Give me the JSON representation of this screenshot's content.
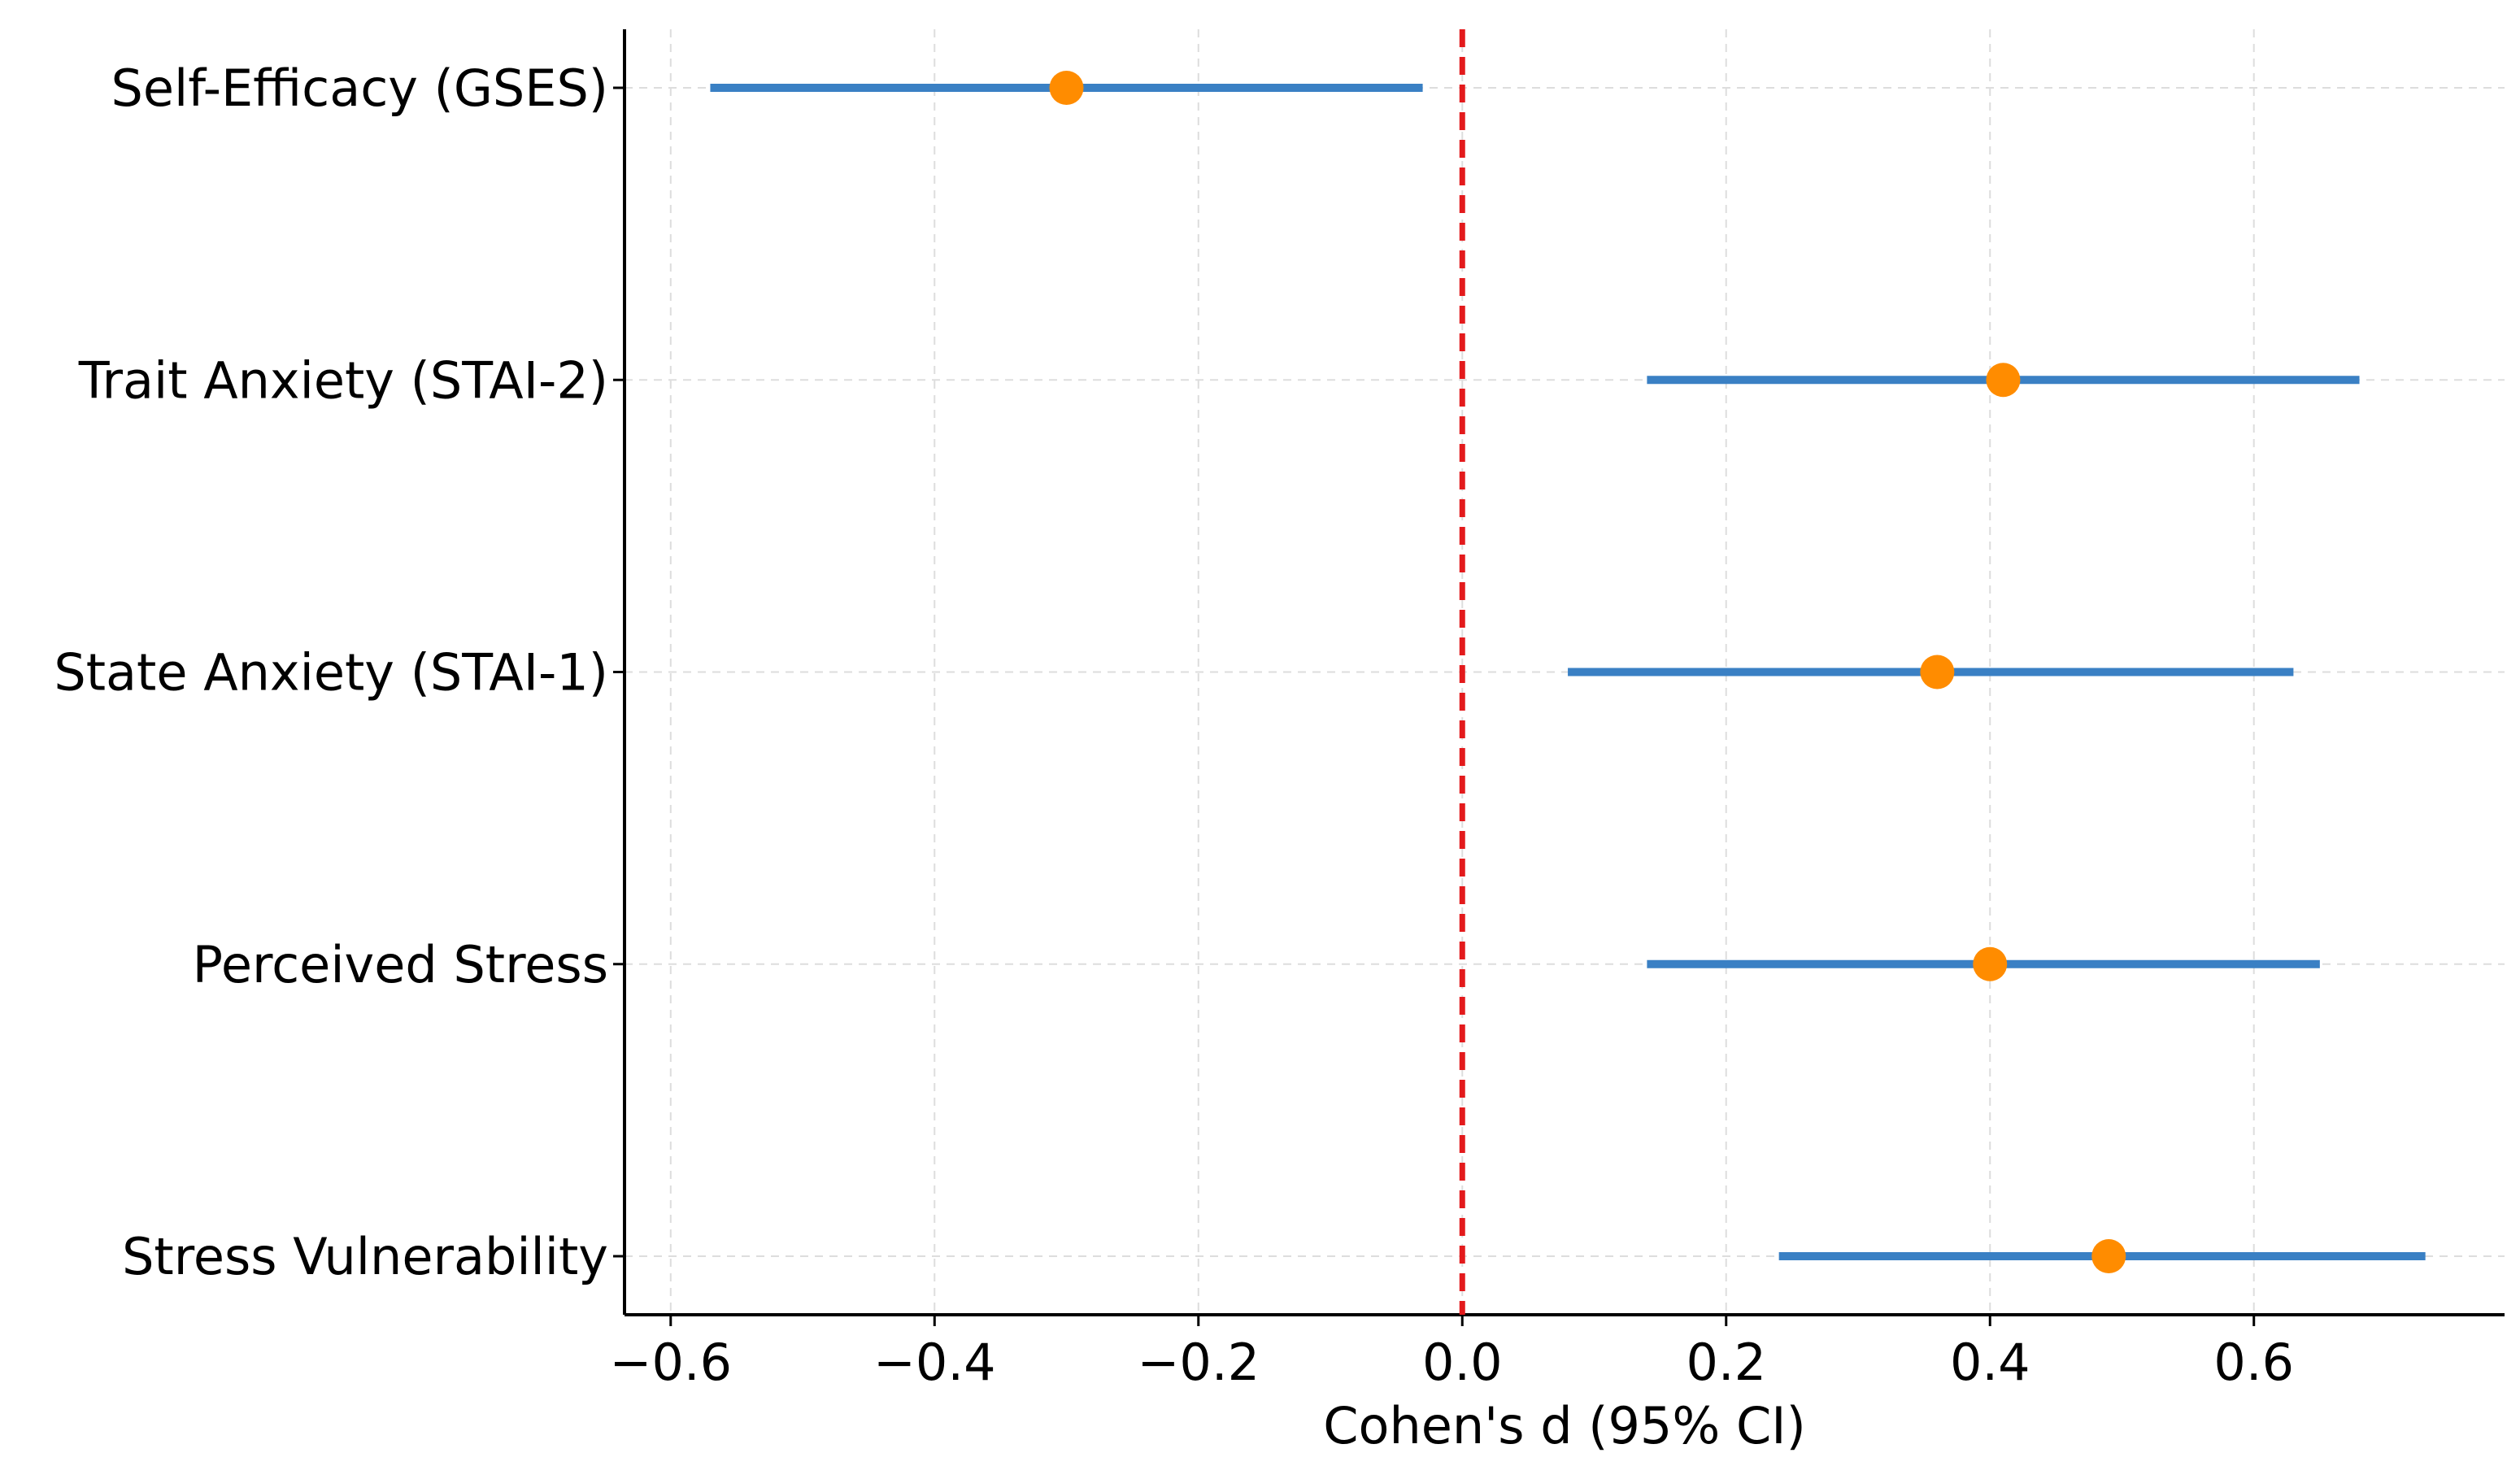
{
  "chart_data": {
    "type": "forest",
    "title": "",
    "xlabel": "Cohen's d (95% CI)",
    "ylabel": "",
    "xlim": [
      -0.635,
      0.79
    ],
    "xticks": [
      -0.6,
      -0.4,
      -0.2,
      0.0,
      0.2,
      0.4,
      0.6
    ],
    "xtick_labels": [
      "−0.6",
      "−0.4",
      "−0.2",
      "0.0",
      "0.2",
      "0.4",
      "0.6"
    ],
    "grid": true,
    "reference_line": {
      "x": 0.0,
      "color": "#e31a1c",
      "style": "dashed"
    },
    "colors": {
      "ci": "#3a80c4",
      "point": "#ff8c00",
      "grid": "#dddddd"
    },
    "measures": [
      {
        "label": "Self-Efficacy (GSES)",
        "d": -0.3,
        "ci_low": -0.57,
        "ci_high": -0.03
      },
      {
        "label": "Trait Anxiety (STAI-2)",
        "d": 0.41,
        "ci_low": 0.14,
        "ci_high": 0.68
      },
      {
        "label": "State Anxiety (STAI-1)",
        "d": 0.36,
        "ci_low": 0.08,
        "ci_high": 0.63
      },
      {
        "label": "Perceived Stress",
        "d": 0.4,
        "ci_low": 0.14,
        "ci_high": 0.65
      },
      {
        "label": "Stress Vulnerability",
        "d": 0.49,
        "ci_low": 0.24,
        "ci_high": 0.73
      }
    ]
  }
}
